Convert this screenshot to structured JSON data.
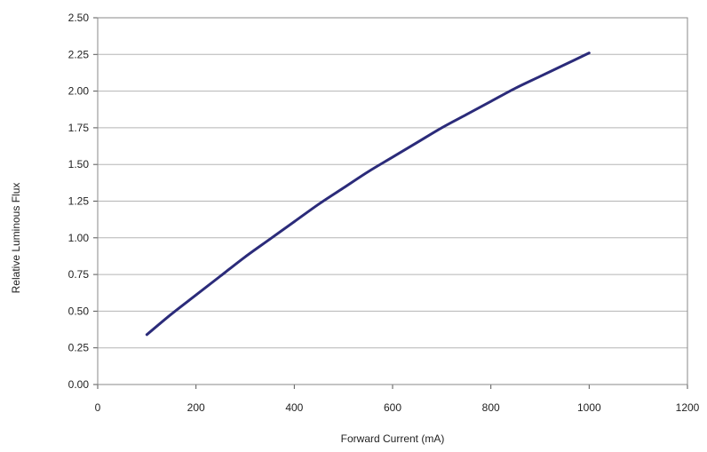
{
  "chart_data": {
    "type": "line",
    "title": "",
    "xlabel": "Forward Current (mA)",
    "ylabel": "Relative Luminous Flux",
    "xlim": [
      0,
      1200
    ],
    "ylim": [
      0,
      2.5
    ],
    "x_ticks": [
      "0",
      "200",
      "400",
      "600",
      "800",
      "1000",
      "1200"
    ],
    "y_ticks": [
      "0.00",
      "0.25",
      "0.50",
      "0.75",
      "1.00",
      "1.25",
      "1.50",
      "1.75",
      "2.00",
      "2.25",
      "2.50"
    ],
    "grid": "horizontal",
    "legend": "none",
    "series": [
      {
        "color": "#2b2b7a",
        "points": [
          [
            100,
            0.34
          ],
          [
            150,
            0.48
          ],
          [
            200,
            0.61
          ],
          [
            250,
            0.74
          ],
          [
            300,
            0.87
          ],
          [
            350,
            0.99
          ],
          [
            400,
            1.11
          ],
          [
            450,
            1.23
          ],
          [
            500,
            1.34
          ],
          [
            550,
            1.45
          ],
          [
            600,
            1.55
          ],
          [
            650,
            1.65
          ],
          [
            700,
            1.75
          ],
          [
            750,
            1.84
          ],
          [
            800,
            1.93
          ],
          [
            850,
            2.02
          ],
          [
            900,
            2.1
          ],
          [
            950,
            2.18
          ],
          [
            1000,
            2.26
          ]
        ]
      }
    ]
  }
}
